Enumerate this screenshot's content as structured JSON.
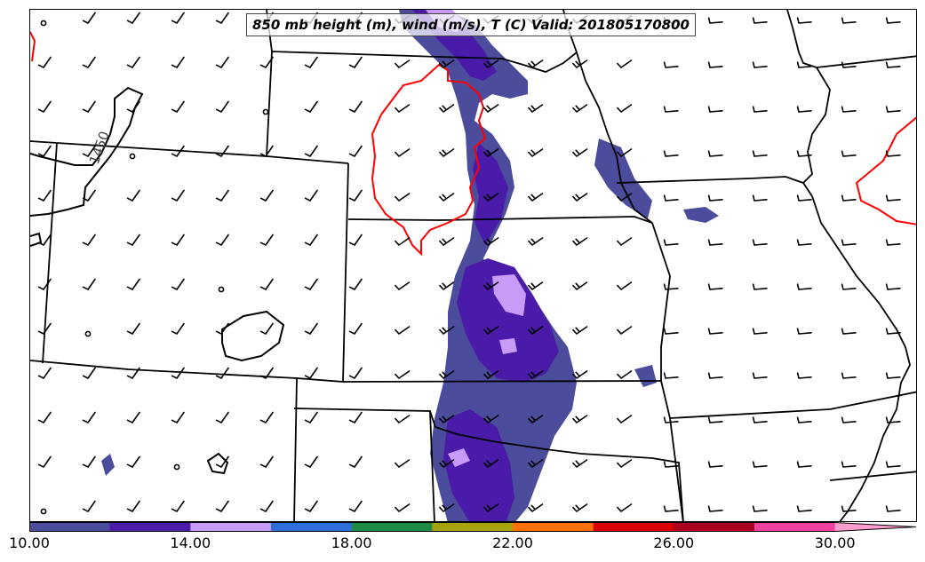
{
  "title": "850 mb height (m), wind (m/s), T (C) Valid: 201805170800",
  "contour_label": "1450",
  "colorbar": {
    "colors": [
      "#4b4c9c",
      "#4a1aa8",
      "#c79bf7",
      "#2e6fdc",
      "#1e8a44",
      "#a5a20c",
      "#ff7000",
      "#d80000",
      "#a8001e",
      "#f040a0",
      "#ff9ecf"
    ],
    "bins": [
      10,
      12,
      14,
      16,
      18,
      20,
      22,
      24,
      26,
      28,
      30
    ],
    "tick_values": [
      10,
      14,
      18,
      22,
      26,
      30
    ],
    "tick_labels": [
      "10.00",
      "14.00",
      "18.00",
      "22.00",
      "26.00",
      "30.00"
    ],
    "extend": "max"
  },
  "colors": {
    "contour": "#000000",
    "isotherm": "#ff0000",
    "borders": "#000000",
    "barbs": "#000000"
  }
}
